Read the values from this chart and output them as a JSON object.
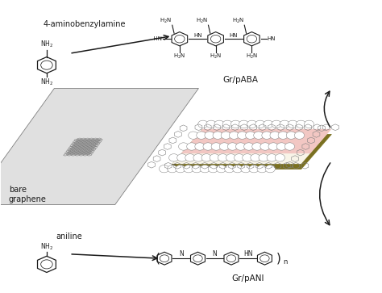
{
  "bg_color": "#ffffff",
  "text_color": "#1a1a1a",
  "gray": "#808080",
  "dark_gray": "#555555",
  "olive": "#7a7020",
  "cream": "#f8f4e8",
  "pink": "#f0b0b0",
  "labels": {
    "monomer1": "4-aminobenzylamine",
    "monomer2": "aniline",
    "product1": "Gr/pABA",
    "product2": "Gr/pANI",
    "graphene": "bare\ngraphene"
  },
  "figsize": [
    4.74,
    3.63
  ],
  "dpi": 100
}
